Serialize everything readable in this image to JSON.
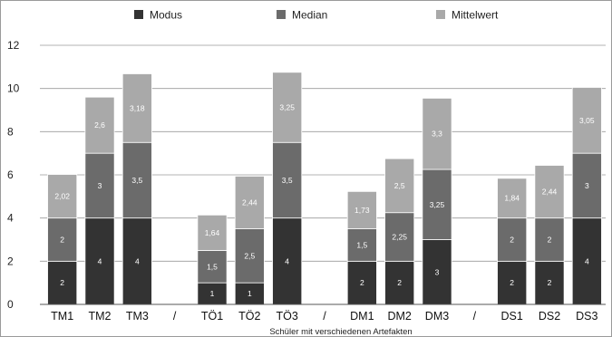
{
  "chart_data": {
    "type": "bar",
    "stacked": true,
    "title": "",
    "xlabel": "Schüler mit verschiedenen Artefakten",
    "ylabel": "",
    "ylim": [
      0,
      12
    ],
    "yticks": [
      "0",
      "2",
      "4",
      "6",
      "8",
      "10",
      "12"
    ],
    "grid": true,
    "legend_position": "top",
    "categories": [
      "TM1",
      "TM2",
      "TM3",
      "/",
      "TÖ1",
      "TÖ2",
      "TÖ3",
      "/",
      "DM1",
      "DM2",
      "DM3",
      "/",
      "DS1",
      "DS2",
      "DS3"
    ],
    "series": [
      {
        "name": "Modus",
        "color": "#333333",
        "values": [
          2,
          4,
          4,
          null,
          1,
          1,
          4,
          null,
          2,
          2,
          3,
          null,
          2,
          2,
          4
        ],
        "labels": [
          "2",
          "4",
          "4",
          "",
          "1",
          "1",
          "4",
          "",
          "2",
          "2",
          "3",
          "",
          "2",
          "2",
          "4"
        ]
      },
      {
        "name": "Median",
        "color": "#6b6b6b",
        "values": [
          2,
          3,
          3.5,
          null,
          1.5,
          2.5,
          3.5,
          null,
          1.5,
          2.25,
          3.25,
          null,
          2,
          2,
          3
        ],
        "labels": [
          "2",
          "3",
          "3,5",
          "",
          "1,5",
          "2,5",
          "3,5",
          "",
          "1,5",
          "2,25",
          "3,25",
          "",
          "2",
          "2",
          "3"
        ]
      },
      {
        "name": "Mittelwert",
        "color": "#a9a9a9",
        "values": [
          2.02,
          2.6,
          3.18,
          null,
          1.64,
          2.44,
          3.25,
          null,
          1.73,
          2.5,
          3.3,
          null,
          1.84,
          2.44,
          3.05
        ],
        "labels": [
          "2,02",
          "2,6",
          "3,18",
          "",
          "1,64",
          "2,44",
          "3,25",
          "",
          "1,73",
          "2,5",
          "3,3",
          "",
          "1,84",
          "2,44",
          "3,05"
        ]
      }
    ]
  }
}
